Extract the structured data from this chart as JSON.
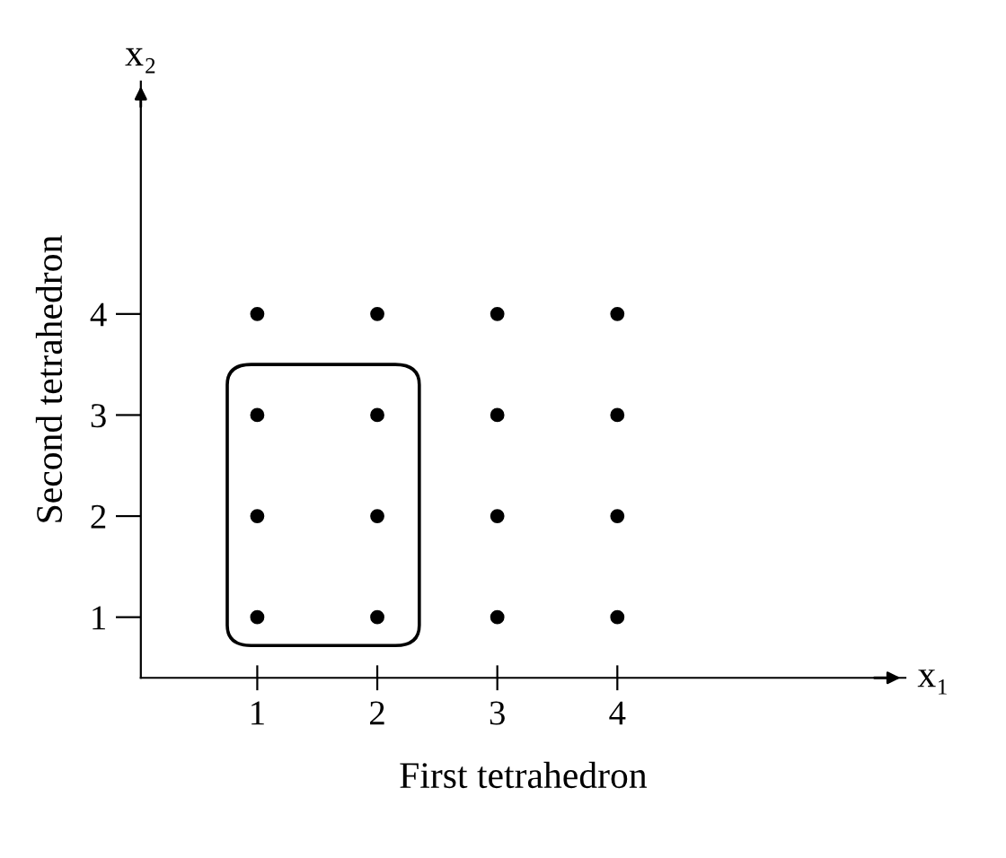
{
  "chart_data": {
    "type": "scatter",
    "xlabel": "First tetrahedron",
    "ylabel": "Second tetrahedron",
    "annotations": [
      "x₁",
      "x₂"
    ],
    "series": [
      {
        "color": "#000000",
        "x": [
          1,
          1,
          1,
          1,
          2,
          2,
          2,
          2,
          3,
          3,
          3,
          3,
          4,
          4,
          4,
          4
        ],
        "values": [
          1,
          2,
          3,
          4,
          1,
          2,
          3,
          4,
          1,
          2,
          3,
          4,
          1,
          2,
          3,
          4
        ]
      }
    ],
    "marker": "circle",
    "grid": false,
    "legend": false,
    "xlim": [
      0.03,
      6.4
    ],
    "ylim": [
      0.4,
      6.3
    ],
    "xticks": [
      1,
      2,
      3,
      4
    ],
    "yticks": [
      1,
      2,
      3,
      4
    ]
  }
}
